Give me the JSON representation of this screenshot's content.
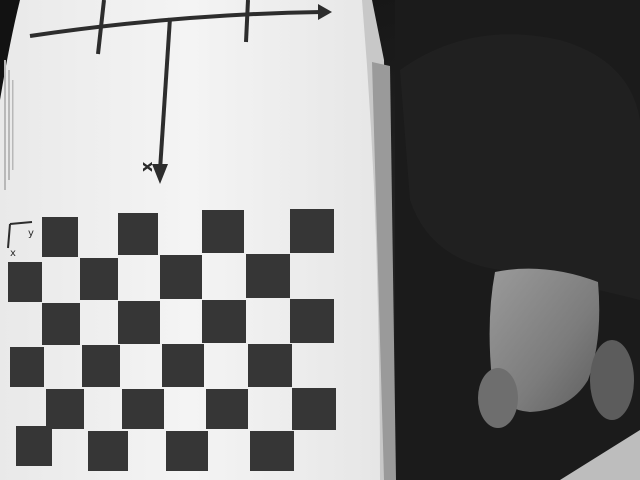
{
  "photo": {
    "subject": "calibration-chessboard-photo",
    "grayscale": true,
    "tones": {
      "paper": "#f2f2f2",
      "paper_shadow": "#d6d6d6",
      "ink": "#3a3a3a",
      "background_dark": "#1c1c1c",
      "skin": "#8a8a8a"
    }
  },
  "target": {
    "axis_labels": {
      "x_main": "x",
      "small_y": "y",
      "small_x": "x"
    }
  }
}
